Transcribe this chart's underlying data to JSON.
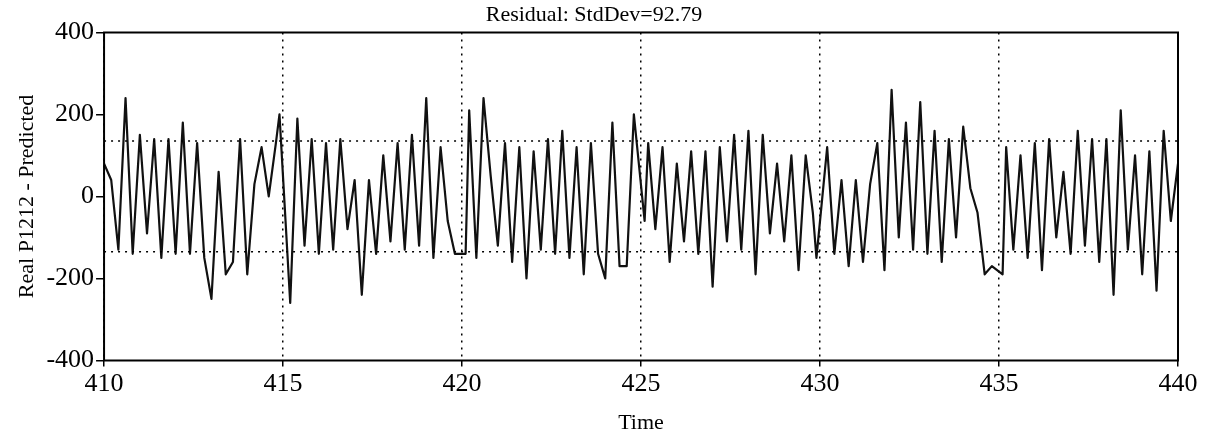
{
  "chart_data": {
    "type": "line",
    "title": "Residual: StdDev=92.79",
    "xlabel": "Time",
    "ylabel": "Real P1212 - Predicted",
    "x": [
      410.0,
      410.2,
      410.4,
      410.6,
      410.8,
      411.0,
      411.2,
      411.4,
      411.6,
      411.8,
      412.0,
      412.2,
      412.4,
      412.6,
      412.8,
      413.0,
      413.2,
      413.4,
      413.6,
      413.8,
      414.0,
      414.2,
      414.4,
      414.6,
      414.8,
      414.9,
      415.2,
      415.4,
      415.6,
      415.8,
      416.0,
      416.2,
      416.4,
      416.6,
      416.8,
      417.0,
      417.2,
      417.4,
      417.6,
      417.8,
      418.0,
      418.2,
      418.4,
      418.6,
      418.8,
      419.0,
      419.2,
      419.4,
      419.6,
      419.8,
      420.1,
      420.2,
      420.4,
      420.6,
      420.8,
      421.0,
      421.2,
      421.4,
      421.6,
      421.8,
      422.0,
      422.2,
      422.4,
      422.6,
      422.8,
      423.0,
      423.2,
      423.4,
      423.6,
      423.8,
      424.0,
      424.2,
      424.4,
      424.6,
      424.8,
      425.1,
      425.2,
      425.4,
      425.6,
      425.8,
      426.0,
      426.2,
      426.4,
      426.6,
      426.8,
      427.0,
      427.2,
      427.4,
      427.6,
      427.8,
      428.0,
      428.2,
      428.4,
      428.6,
      428.8,
      429.0,
      429.2,
      429.4,
      429.6,
      429.8,
      429.9,
      430.2,
      430.4,
      430.6,
      430.8,
      431.0,
      431.2,
      431.4,
      431.6,
      431.8,
      432.0,
      432.2,
      432.4,
      432.6,
      432.8,
      433.0,
      433.2,
      433.4,
      433.6,
      433.8,
      434.0,
      434.2,
      434.4,
      434.6,
      434.8,
      435.1,
      435.2,
      435.4,
      435.6,
      435.8,
      436.0,
      436.2,
      436.4,
      436.6,
      436.8,
      437.0,
      437.2,
      437.4,
      437.6,
      437.8,
      438.0,
      438.2,
      438.4,
      438.6,
      438.8,
      439.0,
      439.2,
      439.4,
      439.6,
      439.8,
      440.0
    ],
    "series": [
      {
        "color": "#111111",
        "values": [
          80,
          40,
          -130,
          240,
          -140,
          150,
          -90,
          140,
          -150,
          140,
          -140,
          180,
          -140,
          130,
          -150,
          -250,
          60,
          -190,
          -160,
          140,
          -190,
          30,
          120,
          0,
          130,
          200,
          -260,
          190,
          -120,
          140,
          -140,
          130,
          -130,
          140,
          -80,
          40,
          -240,
          40,
          -140,
          100,
          -110,
          130,
          -130,
          150,
          -120,
          240,
          -150,
          120,
          -60,
          -140,
          -140,
          210,
          -150,
          240,
          50,
          -120,
          130,
          -160,
          120,
          -200,
          110,
          -130,
          140,
          -140,
          160,
          -150,
          120,
          -190,
          130,
          -140,
          -200,
          180,
          -170,
          -170,
          200,
          -60,
          130,
          -80,
          120,
          -160,
          80,
          -110,
          110,
          -140,
          110,
          -220,
          120,
          -110,
          150,
          -130,
          160,
          -190,
          150,
          -90,
          80,
          -110,
          100,
          -180,
          100,
          -40,
          -150,
          120,
          -140,
          40,
          -170,
          40,
          -160,
          30,
          130,
          -180,
          260,
          -100,
          180,
          -130,
          230,
          -140,
          160,
          -160,
          140,
          -100,
          170,
          20,
          -40,
          -190,
          -170,
          -190,
          120,
          -130,
          100,
          -150,
          130,
          -180,
          140,
          -100,
          60,
          -140,
          160,
          -120,
          140,
          -160,
          140,
          -240,
          210,
          -130,
          100,
          -190,
          110,
          -230,
          160,
          -60,
          80
        ]
      }
    ],
    "xlim": [
      410,
      440
    ],
    "xticks": [
      410,
      415,
      420,
      425,
      430,
      435,
      440
    ],
    "ylim": [
      -400,
      400
    ],
    "yticks": [
      -400,
      -200,
      0,
      200,
      400
    ],
    "grid": "x",
    "legend": false,
    "marker": "none",
    "line_style": "solid",
    "ref_lines": [
      {
        "axis": "y",
        "value": 135,
        "line_style": "dotted"
      },
      {
        "axis": "y",
        "value": -135,
        "line_style": "dotted"
      }
    ]
  }
}
